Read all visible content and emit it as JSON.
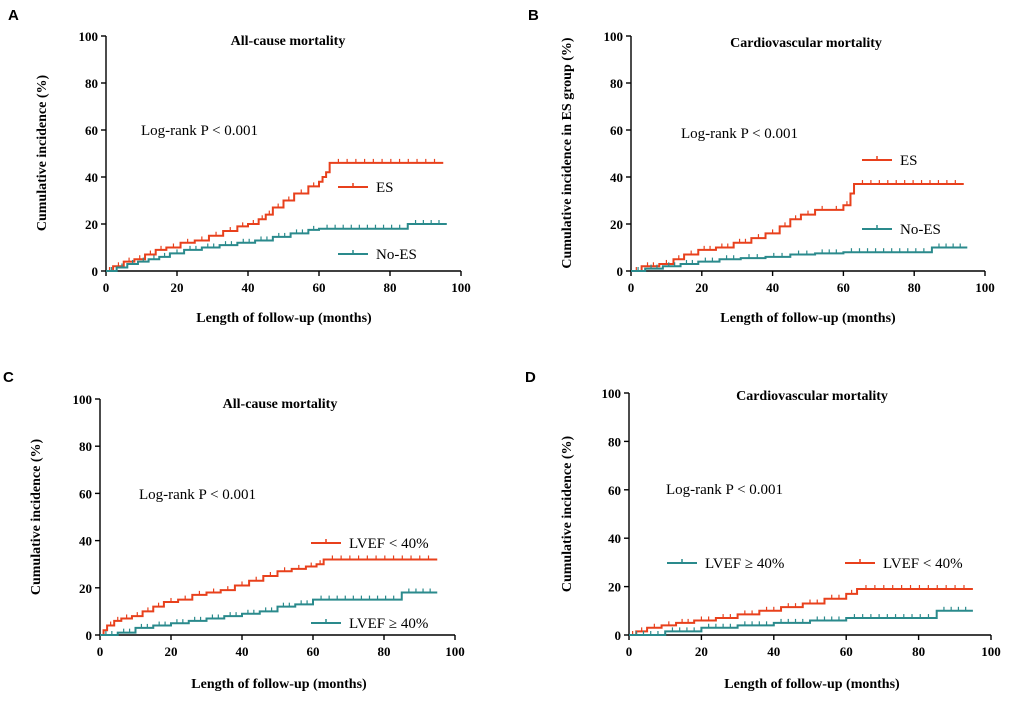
{
  "colors": {
    "red": "#e8401c",
    "teal": "#2a8a8c",
    "axis": "#000000"
  },
  "chart_data": [
    {
      "type": "line",
      "panel_label": "A",
      "title": "All-cause mortality",
      "xlabel": "Length of follow-up (months)",
      "ylabel": "Cumulative incidence (%)",
      "xlim": [
        0,
        100
      ],
      "ylim": [
        0,
        100
      ],
      "xticks": [
        "0",
        "20",
        "40",
        "60",
        "80",
        "100"
      ],
      "yticks": [
        "0",
        "20",
        "40",
        "60",
        "80",
        "100"
      ],
      "annotation": "Log-rank P < 0.001",
      "legend": [
        {
          "label": "ES",
          "color": "#e8401c"
        },
        {
          "label": "No-ES",
          "color": "#2a8a8c"
        }
      ],
      "series": [
        {
          "name": "ES",
          "color": "#e8401c",
          "x": [
            0,
            2,
            5,
            8,
            11,
            14,
            17,
            21,
            25,
            29,
            33,
            37,
            40,
            43,
            45,
            47,
            50,
            53,
            57,
            60,
            61,
            62,
            63,
            95
          ],
          "y": [
            0,
            2,
            4,
            5,
            7,
            9,
            10,
            12,
            13,
            15,
            17,
            19,
            20,
            22,
            24,
            27,
            30,
            33,
            36,
            38,
            40,
            42,
            46,
            46
          ]
        },
        {
          "name": "No-ES",
          "color": "#2a8a8c",
          "x": [
            0,
            3,
            6,
            9,
            12,
            15,
            18,
            22,
            27,
            32,
            37,
            42,
            47,
            52,
            57,
            60,
            85,
            96
          ],
          "y": [
            0,
            1.5,
            3,
            4,
            5,
            6,
            7.5,
            9,
            10,
            11,
            12,
            13,
            14.5,
            16,
            17.5,
            18,
            20,
            20
          ]
        }
      ]
    },
    {
      "type": "line",
      "panel_label": "B",
      "title": "Cardiovascular mortality",
      "xlabel": "Length of follow-up (months)",
      "ylabel": "Cumulative incidence in ES group (%)",
      "xlim": [
        0,
        100
      ],
      "ylim": [
        0,
        100
      ],
      "xticks": [
        "0",
        "20",
        "40",
        "60",
        "80",
        "100"
      ],
      "yticks": [
        "0",
        "20",
        "40",
        "60",
        "80",
        "100"
      ],
      "annotation": "Log-rank P < 0.001",
      "legend": [
        {
          "label": "ES",
          "color": "#e8401c"
        },
        {
          "label": "No-ES",
          "color": "#2a8a8c"
        }
      ],
      "series": [
        {
          "name": "ES",
          "color": "#e8401c",
          "x": [
            0,
            3,
            8,
            12,
            15,
            19,
            24,
            29,
            34,
            38,
            42,
            45,
            48,
            52,
            56,
            60,
            62,
            63,
            94
          ],
          "y": [
            0,
            2,
            3,
            5,
            7,
            9,
            10,
            12,
            14,
            16,
            19,
            22,
            24,
            26,
            26,
            28,
            33,
            37,
            37
          ]
        },
        {
          "name": "No-ES",
          "color": "#2a8a8c",
          "x": [
            0,
            4,
            9,
            14,
            19,
            25,
            31,
            38,
            45,
            52,
            60,
            85,
            95
          ],
          "y": [
            0,
            1,
            2,
            3,
            4,
            5,
            5.5,
            6,
            7,
            7.5,
            8,
            10,
            10
          ]
        }
      ]
    },
    {
      "type": "line",
      "panel_label": "C",
      "title": "All-cause mortality",
      "xlabel": "Length of follow-up (months)",
      "ylabel": "Cumulative incidence (%)",
      "xlim": [
        0,
        100
      ],
      "ylim": [
        0,
        100
      ],
      "xticks": [
        "0",
        "20",
        "40",
        "60",
        "80",
        "100"
      ],
      "yticks": [
        "0",
        "20",
        "40",
        "60",
        "80",
        "100"
      ],
      "annotation": "Log-rank P < 0.001",
      "legend": [
        {
          "label": "LVEF < 40%",
          "color": "#e8401c"
        },
        {
          "label": "LVEF ≥ 40%",
          "color": "#2a8a8c"
        }
      ],
      "series": [
        {
          "name": "LVEF < 40%",
          "color": "#e8401c",
          "x": [
            0,
            1,
            2,
            4,
            6,
            9,
            12,
            15,
            18,
            22,
            26,
            30,
            34,
            38,
            42,
            46,
            50,
            54,
            58,
            61,
            63,
            95
          ],
          "y": [
            0,
            2,
            4,
            6,
            7,
            8,
            10,
            12,
            14,
            15,
            17,
            18,
            19,
            21,
            23,
            25,
            27,
            28,
            29,
            30,
            32,
            32
          ]
        },
        {
          "name": "LVEF ≥ 40%",
          "color": "#2a8a8c",
          "x": [
            0,
            5,
            10,
            15,
            20,
            25,
            30,
            35,
            40,
            45,
            50,
            55,
            60,
            85,
            95
          ],
          "y": [
            0,
            1,
            3,
            4,
            5,
            6,
            7,
            8,
            9,
            10,
            12,
            13,
            15,
            18,
            18
          ]
        }
      ]
    },
    {
      "type": "line",
      "panel_label": "D",
      "title": "Cardiovascular mortality",
      "xlabel": "Length of follow-up (months)",
      "ylabel": "Cumulative incidence (%)",
      "xlim": [
        0,
        100
      ],
      "ylim": [
        0,
        100
      ],
      "xticks": [
        "0",
        "20",
        "40",
        "60",
        "80",
        "100"
      ],
      "yticks": [
        "0",
        "20",
        "40",
        "60",
        "80",
        "100"
      ],
      "annotation": "Log-rank P < 0.001",
      "legend": [
        {
          "label": "LVEF ≥ 40%",
          "color": "#2a8a8c"
        },
        {
          "label": "LVEF < 40%",
          "color": "#e8401c"
        }
      ],
      "series": [
        {
          "name": "LVEF < 40%",
          "color": "#e8401c",
          "x": [
            0,
            2,
            5,
            9,
            13,
            18,
            24,
            30,
            36,
            42,
            48,
            54,
            60,
            63,
            95
          ],
          "y": [
            0,
            1.5,
            3,
            4,
            5,
            6,
            7,
            8.5,
            10,
            11.5,
            13,
            15,
            17,
            19,
            19
          ]
        },
        {
          "name": "LVEF ≥ 40%",
          "color": "#2a8a8c",
          "x": [
            0,
            10,
            20,
            30,
            40,
            50,
            60,
            85,
            95
          ],
          "y": [
            0,
            1.5,
            3,
            4,
            5,
            6,
            7,
            10,
            10
          ]
        }
      ]
    }
  ]
}
